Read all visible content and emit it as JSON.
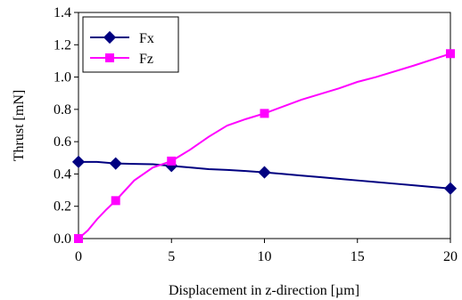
{
  "chart_data": {
    "type": "line",
    "xlabel": "Displacement in z-direction [µm]",
    "ylabel": "Thrust [mN]",
    "xlim": [
      0,
      20
    ],
    "ylim": [
      0,
      1.4
    ],
    "xticks": [
      "0",
      "5",
      "10",
      "15",
      "20"
    ],
    "yticks": [
      "0.0",
      "0.2",
      "0.4",
      "0.6",
      "0.8",
      "1.0",
      "1.2",
      "1.4"
    ],
    "grid": false,
    "legend_position": "top-left",
    "series": [
      {
        "name": "Fx",
        "color": "#000080",
        "marker": "diamond",
        "line_x": [
          0,
          1,
          2,
          3,
          4,
          5,
          6,
          7,
          8,
          9,
          10,
          11,
          12,
          13,
          14,
          15,
          16,
          17,
          18,
          19,
          20
        ],
        "line_y": [
          0.475,
          0.475,
          0.465,
          0.462,
          0.46,
          0.45,
          0.44,
          0.43,
          0.425,
          0.418,
          0.41,
          0.4,
          0.39,
          0.38,
          0.37,
          0.36,
          0.35,
          0.34,
          0.33,
          0.32,
          0.31
        ],
        "marker_x": [
          0,
          2,
          5,
          10,
          20
        ],
        "marker_y": [
          0.475,
          0.465,
          0.45,
          0.41,
          0.31
        ]
      },
      {
        "name": "Fz",
        "color": "#FF00FF",
        "marker": "square",
        "line_x": [
          0,
          0.5,
          1,
          1.5,
          2,
          3,
          4,
          5,
          6,
          7,
          8,
          9,
          10,
          12,
          14,
          15,
          16,
          18,
          20
        ],
        "line_y": [
          0.0,
          0.05,
          0.12,
          0.18,
          0.235,
          0.36,
          0.44,
          0.48,
          0.55,
          0.63,
          0.7,
          0.74,
          0.775,
          0.86,
          0.93,
          0.97,
          1.0,
          1.07,
          1.145
        ],
        "marker_x": [
          0,
          2,
          5,
          10,
          20
        ],
        "marker_y": [
          0.0,
          0.235,
          0.48,
          0.775,
          1.145
        ]
      }
    ]
  }
}
